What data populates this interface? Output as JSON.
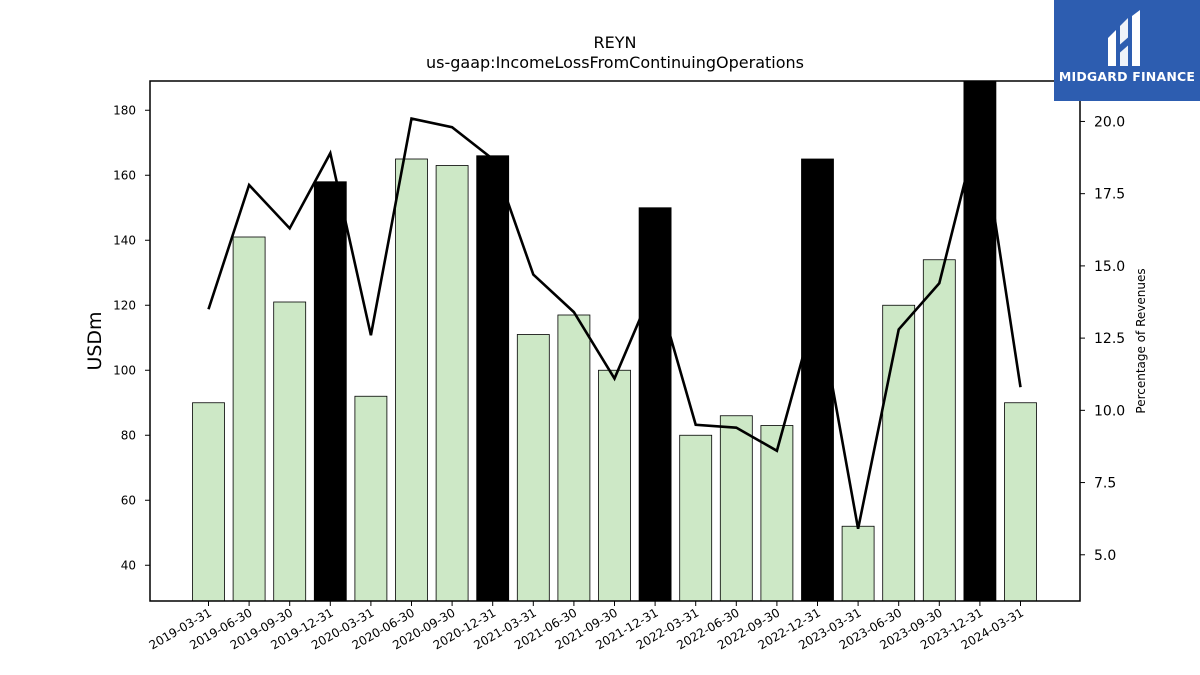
{
  "brand": {
    "name": "MIDGARD FINANCE",
    "color": "#2d5db0"
  },
  "chart_data": {
    "type": "bar",
    "title": "REYN",
    "subtitle": "us-gaap:IncomeLossFromContinuingOperations",
    "ylabel": "USDm",
    "y2label": "Percentage of Revenues",
    "ylim": [
      29,
      189
    ],
    "y2lim": [
      3.4,
      21.4
    ],
    "yticks": [
      40,
      60,
      80,
      100,
      120,
      140,
      160,
      180
    ],
    "y2ticks": [
      "5.0",
      "7.5",
      "10.0",
      "12.5",
      "15.0",
      "17.5",
      "20.0"
    ],
    "categories": [
      "2019-03-31",
      "2019-06-30",
      "2019-09-30",
      "2019-12-31",
      "2020-03-31",
      "2020-06-30",
      "2020-09-30",
      "2020-12-31",
      "2021-03-31",
      "2021-06-30",
      "2021-09-30",
      "2021-12-31",
      "2022-03-31",
      "2022-06-30",
      "2022-09-30",
      "2022-12-31",
      "2023-03-31",
      "2023-06-30",
      "2023-09-30",
      "2023-12-31",
      "2024-03-31"
    ],
    "series": [
      {
        "type": "bar",
        "values": [
          90,
          141,
          121,
          158,
          92,
          165,
          163,
          166,
          111,
          117,
          100,
          150,
          80,
          86,
          83,
          165,
          52,
          120,
          134,
          190,
          90
        ],
        "highlight": [
          false,
          false,
          false,
          true,
          false,
          false,
          false,
          true,
          false,
          false,
          false,
          true,
          false,
          false,
          false,
          true,
          false,
          false,
          false,
          true,
          false
        ],
        "color": "#cde8c6",
        "highlight_color": "#000000"
      },
      {
        "type": "line",
        "axis": "right",
        "color": "#000000",
        "values": [
          13.5,
          17.8,
          16.3,
          18.9,
          12.6,
          20.1,
          19.8,
          18.7,
          14.7,
          13.4,
          11.1,
          14.4,
          9.5,
          9.4,
          8.6,
          13.7,
          5.9,
          12.8,
          14.4,
          20.0,
          10.8
        ]
      }
    ]
  }
}
